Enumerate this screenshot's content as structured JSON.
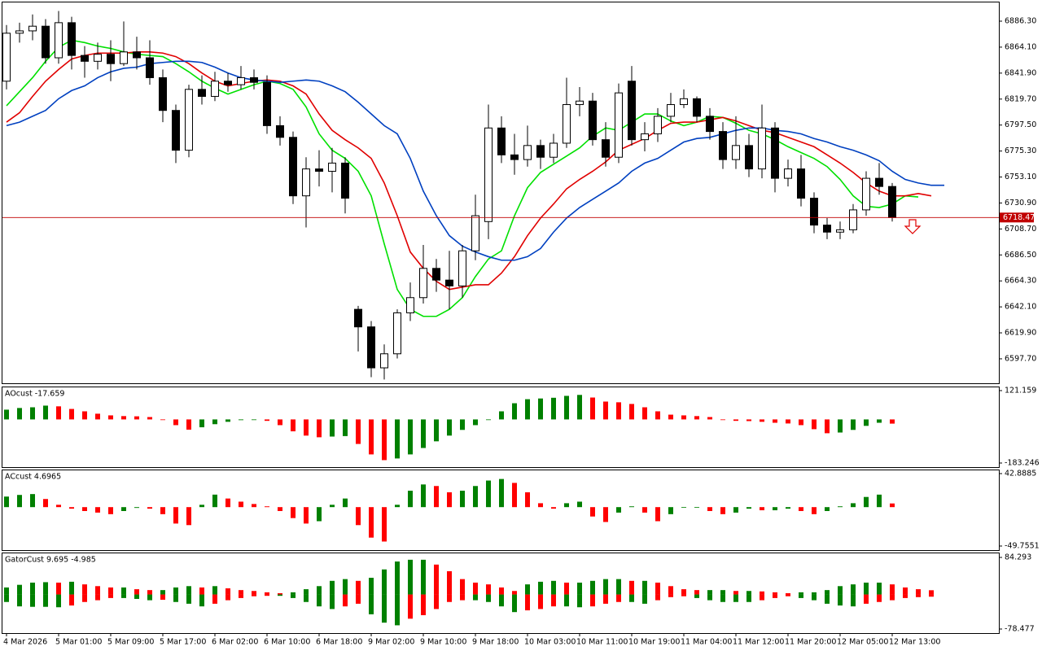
{
  "chart_data": [
    {
      "type": "candlestick",
      "categories": [
        "4 Mar 2026",
        null,
        null,
        null,
        "5 Mar 01:00",
        null,
        null,
        null,
        "5 Mar 09:00",
        null,
        null,
        null,
        "5 Mar 17:00",
        null,
        null,
        null,
        "6 Mar 02:00",
        null,
        null,
        null,
        "6 Mar 10:00",
        null,
        null,
        null,
        "6 Mar 18:00",
        null,
        null,
        null,
        "9 Mar 02:00",
        null,
        null,
        null,
        "9 Mar 10:00",
        null,
        null,
        null,
        "9 Mar 18:00",
        null,
        null,
        null,
        "10 Mar 03:00",
        null,
        null,
        null,
        "10 Mar 11:00",
        null,
        null,
        null,
        "10 Mar 19:00",
        null,
        null,
        null,
        "11 Mar 04:00",
        null,
        null,
        null,
        "11 Mar 12:00",
        null,
        null,
        null,
        "11 Mar 20:00",
        null,
        null,
        null,
        "12 Mar 05:00",
        null,
        null,
        null,
        "12 Mar 13:00",
        null,
        null,
        null,
        null
      ],
      "open": [
        6835,
        6876,
        6878,
        6882,
        6855,
        6885,
        6857,
        6852,
        6858,
        6850,
        6860,
        6855,
        6838,
        6810,
        6776,
        6828,
        6822,
        6835,
        6832,
        6838,
        6834,
        6797,
        6787,
        6737,
        6760,
        6758,
        6765,
        6640,
        6625,
        6590,
        6602,
        6637,
        6650,
        6675,
        6665,
        6660,
        6690,
        6715,
        6795,
        6772,
        6768,
        6780,
        6770,
        6782,
        6815,
        6818,
        6785,
        6770,
        6835,
        6785,
        6790,
        6805,
        6815,
        6820,
        6805,
        6792,
        6768,
        6780,
        6760,
        6795,
        6752,
        6760,
        6735,
        6712,
        6706,
        6708,
        6725,
        6752,
        6745,
        null,
        null,
        null,
        null
      ],
      "high": [
        6883,
        6885,
        6892,
        6888,
        6895,
        6890,
        6865,
        6868,
        6870,
        6886,
        6873,
        6870,
        6845,
        6815,
        6832,
        6840,
        6843,
        6842,
        6848,
        6845,
        6840,
        6805,
        6792,
        6770,
        6776,
        6778,
        6770,
        6643,
        6630,
        6610,
        6640,
        6663,
        6695,
        6683,
        6690,
        6695,
        6738,
        6815,
        6805,
        6790,
        6797,
        6785,
        6790,
        6838,
        6830,
        6825,
        6800,
        6833,
        6848,
        6800,
        6812,
        6825,
        6828,
        6822,
        6812,
        6800,
        6805,
        6790,
        6815,
        6800,
        6768,
        6772,
        6740,
        6718,
        6715,
        6730,
        6758,
        6765,
        6748,
        null,
        null,
        null,
        null
      ],
      "low": [
        6828,
        6868,
        6870,
        6850,
        6850,
        6845,
        6838,
        6845,
        6835,
        6848,
        6845,
        6832,
        6800,
        6765,
        6770,
        6815,
        6818,
        6826,
        6828,
        6828,
        6790,
        6780,
        6730,
        6710,
        6745,
        6740,
        6722,
        6604,
        6582,
        6580,
        6598,
        6630,
        6645,
        6655,
        6640,
        6650,
        6682,
        6700,
        6765,
        6755,
        6762,
        6760,
        6765,
        6778,
        6805,
        6780,
        6762,
        6765,
        6780,
        6775,
        6783,
        6800,
        6812,
        6800,
        6785,
        6760,
        6760,
        6753,
        6752,
        6740,
        6745,
        6728,
        6705,
        6700,
        6700,
        6705,
        6720,
        6738,
        6715,
        null,
        null,
        null,
        null
      ],
      "close": [
        6876,
        6878,
        6882,
        6855,
        6885,
        6857,
        6852,
        6858,
        6850,
        6860,
        6855,
        6838,
        6810,
        6776,
        6828,
        6822,
        6835,
        6832,
        6838,
        6834,
        6797,
        6787,
        6737,
        6760,
        6758,
        6765,
        6735,
        6625,
        6590,
        6602,
        6637,
        6650,
        6675,
        6665,
        6660,
        6690,
        6720,
        6795,
        6772,
        6768,
        6780,
        6770,
        6782,
        6815,
        6818,
        6785,
        6770,
        6825,
        6785,
        6790,
        6805,
        6815,
        6820,
        6805,
        6792,
        6768,
        6780,
        6760,
        6795,
        6752,
        6760,
        6735,
        6712,
        6706,
        6708,
        6725,
        6752,
        6745,
        6718.47,
        null,
        null,
        null,
        null
      ],
      "up_color": "#ffffff",
      "down_color": "#000000",
      "series": [
        {
          "color": "#00e000",
          "values": [
            6814,
            6826,
            6838,
            6852,
            6864,
            6870,
            6868,
            6865,
            6863,
            6860,
            6858,
            6857,
            6856,
            6850,
            6843,
            6835,
            6829,
            6824,
            6828,
            6832,
            6835,
            6833,
            6828,
            6813,
            6790,
            6776,
            6769,
            6758,
            6737,
            6696,
            6657,
            6640,
            6634,
            6634,
            6640,
            6650,
            6668,
            6683,
            6690,
            6720,
            6744,
            6757,
            6764,
            6771,
            6778,
            6788,
            6795,
            6793,
            6800,
            6807,
            6807,
            6801,
            6797,
            6800,
            6805,
            6804,
            6799,
            6793,
            6790,
            6785,
            6779,
            6774,
            6769,
            6762,
            6751,
            6737,
            6728,
            6727,
            6730,
            6737,
            6736,
            null,
            null
          ]
        },
        {
          "color": "#e00000",
          "values": [
            6800,
            6808,
            6822,
            6835,
            6845,
            6854,
            6857,
            6859,
            6859,
            6859,
            6860,
            6860,
            6859,
            6856,
            6850,
            6842,
            6835,
            6831,
            6833,
            6835,
            6836,
            6835,
            6831,
            6824,
            6807,
            6793,
            6785,
            6778,
            6769,
            6748,
            6720,
            6689,
            6675,
            6664,
            6657,
            6659,
            6661,
            6661,
            6671,
            6685,
            6703,
            6718,
            6730,
            6743,
            6751,
            6758,
            6766,
            6776,
            6781,
            6786,
            6793,
            6799,
            6800,
            6800,
            6802,
            6804,
            6801,
            6797,
            6793,
            6791,
            6787,
            6783,
            6779,
            6772,
            6765,
            6757,
            6748,
            6741,
            6737,
            6737,
            6739,
            6737,
            null
          ]
        },
        {
          "color": "#0040c0",
          "values": [
            6797,
            6800,
            6805,
            6810,
            6820,
            6827,
            6831,
            6838,
            6843,
            6846,
            6847,
            6850,
            6851,
            6852,
            6852,
            6851,
            6847,
            6842,
            6838,
            6836,
            6835,
            6834,
            6835,
            6836,
            6835,
            6831,
            6826,
            6817,
            6807,
            6797,
            6790,
            6769,
            6741,
            6720,
            6703,
            6694,
            6689,
            6685,
            6682,
            6682,
            6685,
            6692,
            6706,
            6718,
            6727,
            6734,
            6741,
            6748,
            6758,
            6765,
            6769,
            6776,
            6783,
            6786,
            6787,
            6790,
            6793,
            6795,
            6795,
            6793,
            6792,
            6790,
            6786,
            6783,
            6779,
            6776,
            6772,
            6767,
            6758,
            6751,
            6748,
            6746,
            6746
          ]
        }
      ],
      "ylim": [
        6576.8,
        6902.3
      ],
      "yticks": [
        {
          "value": 6886.3,
          "label": "6886.30"
        },
        {
          "value": 6864.1,
          "label": "6864.10"
        },
        {
          "value": 6841.9,
          "label": "6841.90"
        },
        {
          "value": 6819.7,
          "label": "6819.70"
        },
        {
          "value": 6797.5,
          "label": "6797.50"
        },
        {
          "value": 6775.3,
          "label": "6775.30"
        },
        {
          "value": 6753.1,
          "label": "6753.10"
        },
        {
          "value": 6730.9,
          "label": "6730.90"
        },
        {
          "value": 6708.7,
          "label": "6708.70"
        },
        {
          "value": 6686.5,
          "label": "6686.50"
        },
        {
          "value": 6664.3,
          "label": "6664.30"
        },
        {
          "value": 6642.1,
          "label": "6642.10"
        },
        {
          "value": 6619.9,
          "label": "6619.90"
        },
        {
          "value": 6597.7,
          "label": "6597.70"
        }
      ],
      "current_price": 6718.47,
      "current_price_color": "#c00000"
    },
    {
      "type": "bar",
      "title": "AOcust -17.659",
      "values": [
        41,
        48,
        51,
        58,
        55,
        44,
        34,
        24,
        17,
        14,
        13,
        10,
        -2,
        -24,
        -43,
        -33,
        -20,
        -10,
        -3,
        0,
        -6,
        -24,
        -50,
        -68,
        -75,
        -72,
        -70,
        -103,
        -147,
        -171,
        -164,
        -147,
        -120,
        -92,
        -68,
        -44,
        -24,
        0,
        34,
        68,
        85,
        88,
        91,
        99,
        103,
        92,
        75,
        72,
        65,
        51,
        34,
        20,
        17,
        14,
        10,
        0,
        -6,
        -7,
        -10,
        -14,
        -17,
        -24,
        -41,
        -58,
        -55,
        -44,
        -27,
        -14,
        -17.659
      ],
      "up_color": "#008000",
      "down_color": "#ff0000",
      "ylim": [
        -200.3,
        134.8
      ],
      "yticks": [
        121.159,
        -183.246
      ]
    },
    {
      "type": "bar",
      "title": "ACcust 4.6965",
      "values": [
        13.5,
        15.6,
        16.7,
        10.4,
        3,
        -2,
        -5,
        -7,
        -9,
        -5,
        -1,
        -2,
        -9,
        -21,
        -23,
        3,
        16,
        11,
        7,
        4,
        1,
        -5,
        -14,
        -21,
        -18,
        3,
        11,
        -23,
        -39,
        -44,
        3,
        21,
        29,
        27,
        19,
        21,
        27,
        34,
        36,
        31,
        19,
        5,
        -2,
        5,
        7,
        -12,
        -19,
        -7,
        1,
        -7,
        -18,
        -9,
        0,
        0,
        -5,
        -9,
        -7,
        -2,
        -4,
        -4,
        -2,
        -5,
        -9,
        -5,
        1,
        5,
        13,
        16,
        4.6965
      ],
      "up_color": "#008000",
      "down_color": "#ff0000",
      "ylim": [
        -54.96,
        47.05
      ],
      "yticks": [
        42.8885,
        -49.7551
      ]
    },
    {
      "type": "gator",
      "title": "GatorCust 9.695 -4.985",
      "series": [
        {
          "values": [
            16,
            22,
            27,
            28,
            27,
            29,
            23,
            19,
            16,
            16,
            12,
            10,
            10,
            16,
            19,
            16,
            19,
            14,
            10,
            8,
            5,
            3,
            5,
            12,
            19,
            31,
            35,
            31,
            38,
            57,
            75,
            79,
            79,
            68,
            53,
            35,
            27,
            23,
            16,
            8,
            23,
            29,
            31,
            27,
            27,
            31,
            35,
            35,
            31,
            31,
            27,
            19,
            12,
            10,
            10,
            10,
            8,
            8,
            7,
            5,
            3,
            5,
            5,
            10,
            19,
            23,
            27,
            27,
            23,
            16,
            12,
            9.695
          ]
        },
        {
          "values": [
            -17,
            -27,
            -28,
            -28,
            -29,
            -25,
            -17,
            -13,
            -8,
            -8,
            -10,
            -13,
            -12,
            -17,
            -21,
            -27,
            -21,
            -13,
            -8,
            -4,
            -3,
            -3,
            -8,
            -17,
            -27,
            -33,
            -27,
            -21,
            -45,
            -64,
            -70,
            -55,
            -47,
            -33,
            -17,
            -13,
            -13,
            -17,
            -27,
            -40,
            -36,
            -33,
            -27,
            -27,
            -29,
            -27,
            -21,
            -17,
            -17,
            -21,
            -13,
            -6,
            -4,
            -8,
            -13,
            -17,
            -17,
            -17,
            -13,
            -8,
            -4,
            -8,
            -13,
            -21,
            -25,
            -27,
            -21,
            -17,
            -13,
            -8,
            -6,
            -4.985
          ]
        }
      ],
      "up_color": "#008000",
      "down_color": "#ff0000",
      "ylim": [
        -87.73,
        93.54
      ],
      "yticks": [
        84.293,
        -78.477
      ]
    }
  ]
}
